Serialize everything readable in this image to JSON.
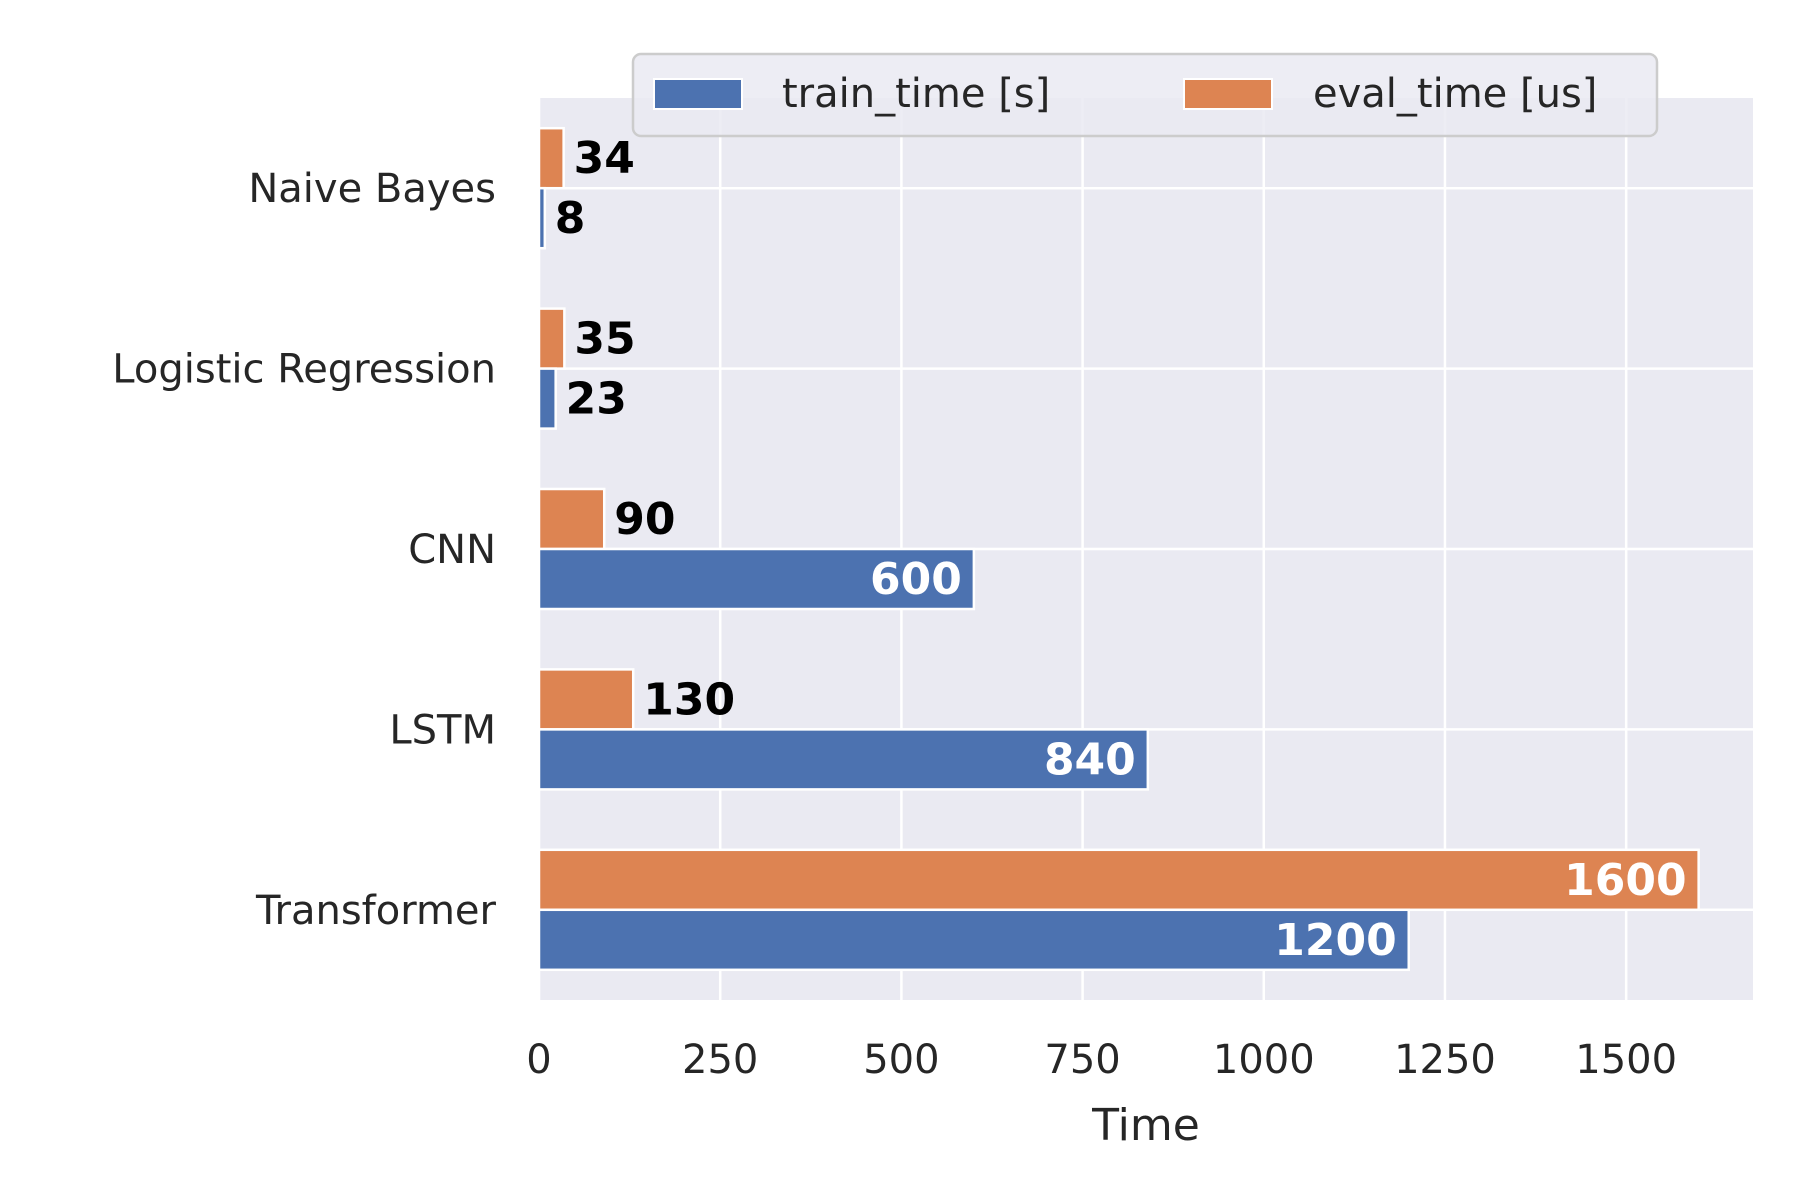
{
  "chart_data": {
    "type": "bar",
    "orientation": "horizontal",
    "categories": [
      "Naive Bayes",
      "Logistic Regression",
      "CNN",
      "LSTM",
      "Transformer"
    ],
    "series": [
      {
        "name": "train_time [s]",
        "values": [
          8,
          23,
          600,
          840,
          1200
        ],
        "color": "#4c72b0"
      },
      {
        "name": "eval_time [us]",
        "values": [
          34,
          35,
          90,
          130,
          1600
        ],
        "color": "#dd8452"
      }
    ],
    "xlabel": "Time",
    "ylabel": "",
    "xlim": [
      0,
      1675
    ],
    "xticks": [
      0,
      250,
      500,
      750,
      1000,
      1250,
      1500
    ],
    "grid": true,
    "legend_position": "top",
    "colors": {
      "plot_background": "#eaeaf2",
      "grid": "#ffffff",
      "text": "#262626",
      "label_dark": "#000000",
      "label_light": "#ffffff"
    }
  }
}
